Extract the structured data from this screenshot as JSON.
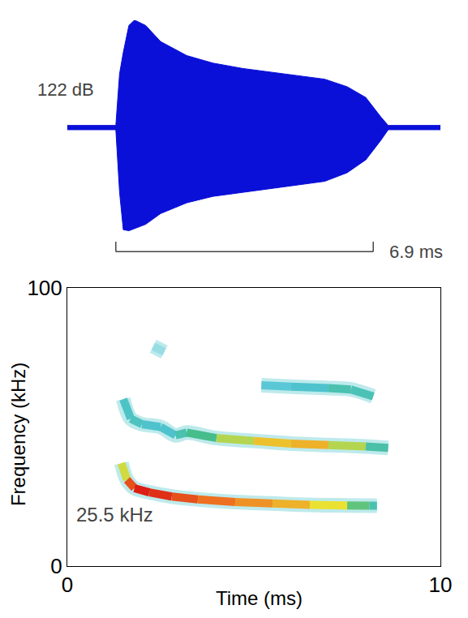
{
  "chart_data": [
    {
      "type": "area",
      "annotation": "122 dB",
      "color": "#0a10d8",
      "x": [
        0,
        1.3,
        1.4,
        1.5,
        1.65,
        1.8,
        2.1,
        2.5,
        3.2,
        3.9,
        4.7,
        5.8,
        6.9,
        7.5,
        8.0,
        8.4,
        8.6,
        10
      ],
      "upper": [
        0.02,
        0.02,
        0.5,
        0.7,
        0.95,
        1.0,
        0.95,
        0.8,
        0.67,
        0.6,
        0.55,
        0.5,
        0.45,
        0.38,
        0.28,
        0.1,
        0.02,
        0.02
      ],
      "lower": [
        -0.02,
        -0.02,
        -0.6,
        -0.95,
        -0.96,
        -0.94,
        -0.9,
        -0.8,
        -0.7,
        -0.64,
        -0.6,
        -0.55,
        -0.5,
        -0.42,
        -0.3,
        -0.12,
        -0.02,
        -0.02
      ],
      "xlim": [
        0,
        10
      ],
      "ylim": [
        -1,
        1
      ],
      "tick_labels": false,
      "scale_bar": {
        "start": 1.3,
        "end": 8.2,
        "label": "6.9 ms"
      }
    },
    {
      "type": "spectrogram",
      "xlabel": "Time (ms)",
      "ylabel": "Frequency (kHz)",
      "annotation": "25.5 kHz",
      "xlim": [
        0,
        10
      ],
      "xticks": [
        0,
        10
      ],
      "ylim": [
        0,
        100
      ],
      "yticks": [
        0,
        100
      ],
      "intensity_range": [
        0,
        1
      ],
      "series": [
        {
          "x": [
            1.45,
            1.6,
            1.8,
            2.2,
            2.8,
            3.5,
            4.5,
            5.5,
            6.5,
            7.5,
            8.1,
            8.3
          ],
          "values": [
            37,
            31,
            28,
            26.5,
            25,
            24,
            23,
            22.5,
            22,
            21.8,
            21.7,
            21.7
          ],
          "intensity": [
            0.5,
            0.85,
            1.0,
            1.0,
            0.95,
            0.9,
            0.85,
            0.8,
            0.75,
            0.65,
            0.5,
            0.35
          ]
        },
        {
          "x": [
            1.5,
            1.7,
            2.0,
            2.5,
            2.9,
            3.2,
            4.0,
            5.0,
            6.0,
            7.0,
            8.0,
            8.6
          ],
          "values": [
            60,
            53,
            51,
            50,
            47,
            48,
            46,
            45,
            44,
            43.5,
            43,
            42.5
          ],
          "intensity": [
            0.3,
            0.4,
            0.35,
            0.3,
            0.35,
            0.5,
            0.6,
            0.7,
            0.8,
            0.75,
            0.55,
            0.35
          ]
        },
        {
          "x": [
            5.2,
            6.0,
            7.0,
            7.6,
            8.2
          ],
          "values": [
            65,
            64.5,
            64,
            63.5,
            61
          ],
          "intensity": [
            0.25,
            0.3,
            0.35,
            0.5,
            0.3
          ]
        },
        {
          "x": [
            2.3,
            2.6
          ],
          "values": [
            79,
            77
          ],
          "intensity": [
            0.1,
            0.1
          ]
        }
      ]
    }
  ]
}
